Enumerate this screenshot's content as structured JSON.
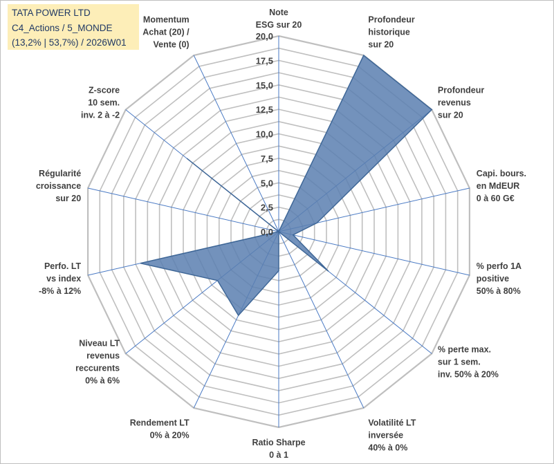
{
  "title_box": {
    "line1": "TATA POWER LTD",
    "line2": "C4_Actions / 5_MONDE",
    "line3": "(13,2% | 53,7%) / 2026W01"
  },
  "colors": {
    "fill": "#5b7fb0",
    "stroke": "#3f6797",
    "grid": "#bfbfbf",
    "spoke": "#4a7ac4",
    "text": "#404040",
    "title_bg": "#fdeeb8"
  },
  "chart_data": {
    "type": "radar",
    "title": "",
    "r_range": [
      0,
      20
    ],
    "r_ticks": [
      "0,0",
      "2,5",
      "5,0",
      "7,5",
      "10,0",
      "12,5",
      "15,0",
      "17,5",
      "20,0"
    ],
    "grid_rings": 16,
    "axes": [
      [
        "Note",
        "ESG sur 20"
      ],
      [
        "Profondeur",
        "historique",
        "sur 20"
      ],
      [
        "Profondeur",
        "revenus",
        "sur 20"
      ],
      [
        "Capi. bours.",
        "en MdEUR",
        "0 à 60 G€"
      ],
      [
        "% perfo 1A",
        "positive",
        "50% à 80%"
      ],
      [
        "% perte max.",
        "sur 1 sem.",
        "inv. 50% à 20%"
      ],
      [
        "Volatilité LT",
        "inversée",
        "40% à 0%"
      ],
      [
        "Ratio Sharpe",
        "0 à 1"
      ],
      [
        "Rendement LT",
        "0% à 20%"
      ],
      [
        "Niveau LT",
        "revenus",
        "reccurents",
        "0% à 6%"
      ],
      [
        "Perfo. LT",
        "vs index",
        "-8% à 12%"
      ],
      [
        "Régularité",
        "croissance",
        "sur 20"
      ],
      [
        "Z-score",
        "10 sem.",
        "inv. 2 à -2"
      ],
      [
        "Momentum",
        "Achat (20) /",
        "Vente (0)"
      ]
    ],
    "series": [
      {
        "name": "TATA POWER LTD",
        "values": [
          0,
          20,
          20,
          4,
          1.5,
          6.5,
          0,
          4,
          9.5,
          8,
          14.5,
          0,
          12,
          0
        ]
      }
    ]
  }
}
